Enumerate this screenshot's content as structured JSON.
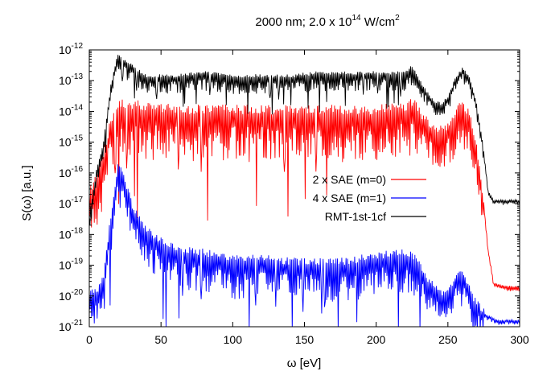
{
  "chart_data": {
    "type": "line",
    "title_main": "2000 nm; 2.0 x 10",
    "title_sup": "14",
    "title_unit": " W/cm",
    "title_unit_sup": "2",
    "xlabel": "ω [eV]",
    "ylabel": "S(ω) [a.u.]",
    "xlim": [
      0,
      300
    ],
    "ylim_log10": [
      -21,
      -12
    ],
    "yscale": "log",
    "grid": false,
    "legend_position": "center-right",
    "x_ticks": [
      0,
      50,
      100,
      150,
      200,
      250,
      300
    ],
    "x_tick_labels": [
      "0",
      "50",
      "100",
      "150",
      "200",
      "250",
      "300"
    ],
    "y_ticks_exponents": [
      -21,
      -20,
      -19,
      -18,
      -17,
      -16,
      -15,
      -14,
      -13,
      -12
    ],
    "y_tick_base": "10",
    "y_tick_exp_labels": [
      "-21",
      "-20",
      "-19",
      "-18",
      "-17",
      "-16",
      "-15",
      "-14",
      "-13",
      "-12"
    ],
    "series": [
      {
        "name": "2 x SAE (m=0)",
        "color": "#ff0000",
        "envelope_log10": [
          [
            0,
            -16.8
          ],
          [
            5,
            -16.2
          ],
          [
            10,
            -15.5
          ],
          [
            15,
            -14.5
          ],
          [
            20,
            -14.0
          ],
          [
            25,
            -13.9
          ],
          [
            40,
            -14.0
          ],
          [
            60,
            -14.1
          ],
          [
            80,
            -14.1
          ],
          [
            100,
            -14.1
          ],
          [
            120,
            -14.1
          ],
          [
            140,
            -14.1
          ],
          [
            160,
            -14.1
          ],
          [
            180,
            -14.1
          ],
          [
            200,
            -14.1
          ],
          [
            220,
            -14.0
          ],
          [
            227,
            -13.8
          ],
          [
            232,
            -14.3
          ],
          [
            237,
            -14.5
          ],
          [
            242,
            -14.7
          ],
          [
            247,
            -14.7
          ],
          [
            252,
            -14.5
          ],
          [
            257,
            -14.0
          ],
          [
            260,
            -13.9
          ],
          [
            265,
            -14.2
          ],
          [
            270,
            -15.3
          ],
          [
            275,
            -17.0
          ],
          [
            278,
            -18.5
          ],
          [
            282,
            -19.6
          ],
          [
            290,
            -19.7
          ],
          [
            300,
            -19.7
          ]
        ]
      },
      {
        "name": "4 x SAE (m=1)",
        "color": "#0000ff",
        "envelope_log10": [
          [
            0,
            -20.0
          ],
          [
            5,
            -20.0
          ],
          [
            10,
            -19.5
          ],
          [
            15,
            -17.5
          ],
          [
            20,
            -15.8
          ],
          [
            25,
            -16.4
          ],
          [
            30,
            -17.2
          ],
          [
            40,
            -18.0
          ],
          [
            60,
            -18.6
          ],
          [
            80,
            -18.7
          ],
          [
            100,
            -18.9
          ],
          [
            120,
            -18.9
          ],
          [
            140,
            -19.0
          ],
          [
            160,
            -19.0
          ],
          [
            180,
            -19.0
          ],
          [
            200,
            -18.8
          ],
          [
            220,
            -18.7
          ],
          [
            228,
            -18.9
          ],
          [
            235,
            -19.5
          ],
          [
            245,
            -20.0
          ],
          [
            252,
            -19.8
          ],
          [
            258,
            -19.3
          ],
          [
            262,
            -19.5
          ],
          [
            268,
            -20.2
          ],
          [
            275,
            -20.6
          ],
          [
            285,
            -20.8
          ],
          [
            300,
            -20.8
          ]
        ]
      },
      {
        "name": "RMT-1st-1cf",
        "color": "#000000",
        "envelope_log10": [
          [
            0,
            -17.5
          ],
          [
            5,
            -16.0
          ],
          [
            10,
            -15.0
          ],
          [
            15,
            -13.2
          ],
          [
            20,
            -12.2
          ],
          [
            25,
            -12.4
          ],
          [
            40,
            -12.9
          ],
          [
            60,
            -12.9
          ],
          [
            80,
            -12.8
          ],
          [
            100,
            -12.9
          ],
          [
            120,
            -12.9
          ],
          [
            140,
            -12.9
          ],
          [
            160,
            -12.8
          ],
          [
            180,
            -12.8
          ],
          [
            200,
            -12.8
          ],
          [
            220,
            -12.8
          ],
          [
            225,
            -12.6
          ],
          [
            230,
            -13.0
          ],
          [
            235,
            -13.4
          ],
          [
            240,
            -13.7
          ],
          [
            245,
            -13.8
          ],
          [
            250,
            -13.6
          ],
          [
            255,
            -13.0
          ],
          [
            260,
            -12.65
          ],
          [
            265,
            -12.9
          ],
          [
            270,
            -13.8
          ],
          [
            275,
            -15.3
          ],
          [
            278,
            -16.6
          ],
          [
            282,
            -16.9
          ],
          [
            290,
            -16.9
          ],
          [
            300,
            -16.9
          ]
        ]
      }
    ]
  }
}
